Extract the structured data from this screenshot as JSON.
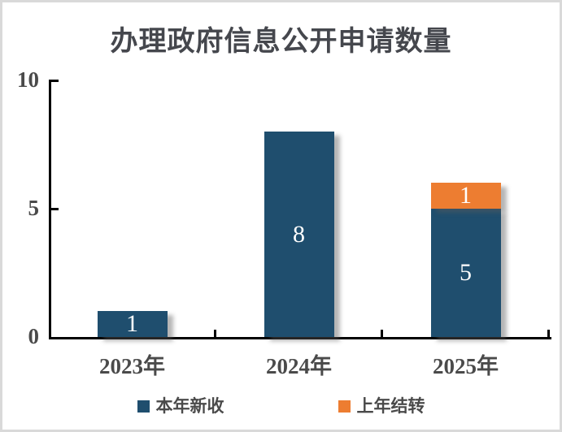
{
  "chart_data": {
    "type": "bar",
    "stacked": true,
    "title": "办理政府信息公开申请数量",
    "categories": [
      "2023年",
      "2024年",
      "2025年"
    ],
    "series": [
      {
        "name": "本年新收",
        "color": "#1F4E6E",
        "values": [
          1,
          8,
          5
        ]
      },
      {
        "name": "上年结转",
        "color": "#ED7D31",
        "values": [
          0,
          0,
          1
        ]
      }
    ],
    "xlabel": "",
    "ylabel": "",
    "ylim": [
      0,
      10
    ],
    "yticks": [
      0,
      5,
      10
    ],
    "grid": false,
    "legend_position": "bottom",
    "bar_label_color": "#FFFFFF"
  },
  "style": {
    "title_color": "#45474D",
    "axis_color": "#000000",
    "tick_label_color": "#4A4A4A",
    "background": "#FFFFFF",
    "border_color": "#D9D9D9"
  }
}
